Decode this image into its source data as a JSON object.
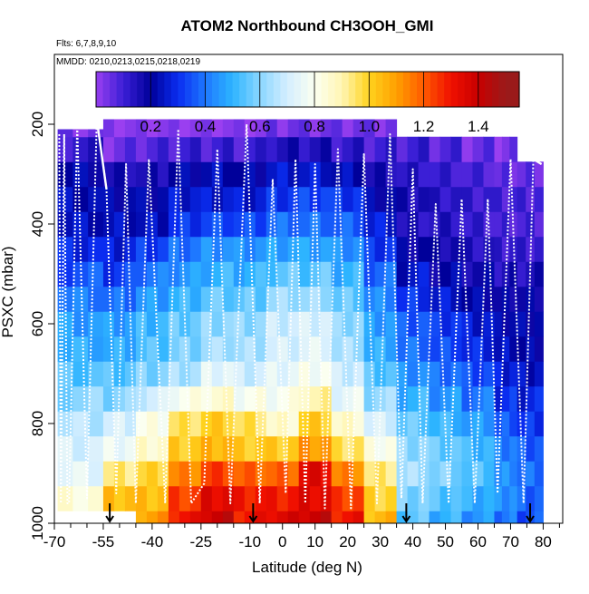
{
  "chart_data": {
    "type": "heatmap",
    "title": "ATOM2 Northbound CH3OOH_GMI",
    "subtitle_flights": "Flts: 6,7,8,9,10",
    "subtitle_dates": "MMDD: 0210,0213,0215,0218,0219",
    "xlabel": "Latitude (deg N)",
    "ylabel": "PSXC (mbar)",
    "xlim": [
      -70,
      86
    ],
    "ylim": [
      1000,
      60
    ],
    "y_reversed": true,
    "x_ticks": [
      -70,
      -55,
      -40,
      -25,
      -10,
      0,
      10,
      20,
      30,
      40,
      50,
      60,
      70,
      80
    ],
    "x_minor_ticks": [
      -65,
      -60,
      -50,
      -45,
      -35,
      -30,
      -20,
      -15,
      -5,
      5,
      15,
      25,
      35,
      45,
      55,
      65,
      75,
      85
    ],
    "y_ticks": [
      200,
      400,
      600,
      800,
      1000
    ],
    "colorbar": {
      "ticks": [
        0.2,
        0.4,
        0.6,
        0.8,
        1.0,
        1.2,
        1.4
      ],
      "tick_labels": [
        "0.2",
        "0.4",
        "0.6",
        "0.8",
        "1.0",
        "1.2",
        "1.4"
      ],
      "range": [
        0,
        1.55
      ],
      "stops": [
        {
          "v": 0.0,
          "color": "#9a3ff0"
        },
        {
          "v": 0.1,
          "color": "#3b1fd6"
        },
        {
          "v": 0.2,
          "color": "#00009a"
        },
        {
          "v": 0.3,
          "color": "#0a2cf0"
        },
        {
          "v": 0.4,
          "color": "#1e78ff"
        },
        {
          "v": 0.5,
          "color": "#2db4ff"
        },
        {
          "v": 0.6,
          "color": "#8ad6ff"
        },
        {
          "v": 0.7,
          "color": "#d4eeff"
        },
        {
          "v": 0.8,
          "color": "#fbfff0"
        },
        {
          "v": 0.9,
          "color": "#fff6b4"
        },
        {
          "v": 1.0,
          "color": "#ffd21e"
        },
        {
          "v": 1.1,
          "color": "#ffa000"
        },
        {
          "v": 1.2,
          "color": "#ff5a00"
        },
        {
          "v": 1.3,
          "color": "#f01000"
        },
        {
          "v": 1.4,
          "color": "#c80000"
        },
        {
          "v": 1.5,
          "color": "#9a1a1a"
        }
      ]
    },
    "pressure_levels": [
      1000,
      950,
      900,
      850,
      800,
      750,
      700,
      650,
      600,
      550,
      500,
      450,
      400,
      350,
      300,
      250,
      200
    ],
    "segments": [
      {
        "lat": [
          -69,
          -55
        ],
        "ptop": 210,
        "values": [
          null,
          0.85,
          0.75,
          0.7,
          0.65,
          0.6,
          0.55,
          0.5,
          0.45,
          0.4,
          0.35,
          0.3,
          0.25,
          0.22,
          0.2,
          0.12,
          0.05
        ]
      },
      {
        "lat": [
          -55,
          -45
        ],
        "ptop": 190,
        "values": [
          null,
          1.05,
          0.95,
          0.75,
          0.7,
          0.6,
          0.55,
          0.5,
          0.45,
          0.38,
          0.32,
          0.28,
          0.25,
          0.2,
          0.15,
          0.05,
          0.02
        ]
      },
      {
        "lat": [
          -45,
          -35
        ],
        "ptop": 190,
        "values": [
          1.1,
          1.05,
          1.0,
          0.85,
          0.8,
          0.7,
          0.6,
          0.55,
          0.5,
          0.45,
          0.4,
          0.33,
          0.25,
          0.2,
          0.15,
          0.08,
          0.02
        ]
      },
      {
        "lat": [
          -35,
          -25
        ],
        "ptop": 190,
        "values": [
          1.3,
          1.25,
          1.15,
          1.0,
          0.95,
          0.8,
          0.65,
          0.6,
          0.55,
          0.5,
          0.45,
          0.4,
          0.32,
          0.25,
          0.2,
          0.1,
          0.02
        ]
      },
      {
        "lat": [
          -25,
          -15
        ],
        "ptop": 190,
        "values": [
          1.4,
          1.35,
          1.25,
          1.05,
          1.0,
          0.85,
          0.75,
          0.65,
          0.6,
          0.55,
          0.5,
          0.45,
          0.35,
          0.25,
          0.22,
          0.1,
          0.02
        ]
      },
      {
        "lat": [
          -15,
          -5
        ],
        "ptop": 190,
        "values": [
          1.3,
          1.3,
          1.2,
          1.0,
          0.95,
          0.8,
          0.7,
          0.65,
          0.6,
          0.55,
          0.5,
          0.45,
          0.35,
          0.25,
          0.2,
          0.1,
          0.02
        ]
      },
      {
        "lat": [
          -5,
          5
        ],
        "ptop": 190,
        "values": [
          1.35,
          1.3,
          1.2,
          1.0,
          0.85,
          0.8,
          0.75,
          0.72,
          0.68,
          0.62,
          0.55,
          0.48,
          0.4,
          0.3,
          0.25,
          0.15,
          0.05
        ]
      },
      {
        "lat": [
          5,
          15
        ],
        "ptop": 190,
        "values": [
          1.4,
          1.35,
          1.35,
          1.1,
          1.0,
          0.9,
          0.8,
          0.75,
          0.7,
          0.62,
          0.55,
          0.48,
          0.4,
          0.32,
          0.25,
          0.15,
          0.05
        ]
      },
      {
        "lat": [
          15,
          25
        ],
        "ptop": 190,
        "values": [
          1.3,
          1.25,
          1.15,
          0.95,
          0.85,
          0.75,
          0.7,
          0.65,
          0.6,
          0.55,
          0.5,
          0.45,
          0.38,
          0.3,
          0.22,
          0.12,
          0.05
        ]
      },
      {
        "lat": [
          25,
          35
        ],
        "ptop": 190,
        "values": [
          1.05,
          1.0,
          0.95,
          0.8,
          0.7,
          0.62,
          0.55,
          0.5,
          0.45,
          0.42,
          0.38,
          0.32,
          0.28,
          0.2,
          0.15,
          0.1,
          0.05
        ]
      },
      {
        "lat": [
          35,
          45
        ],
        "ptop": 230,
        "values": [
          0.55,
          0.6,
          0.65,
          0.6,
          0.55,
          0.5,
          0.45,
          0.4,
          0.35,
          0.3,
          0.25,
          0.2,
          0.15,
          0.15,
          0.12,
          0.1,
          null
        ]
      },
      {
        "lat": [
          45,
          55
        ],
        "ptop": 230,
        "values": [
          0.5,
          0.55,
          0.6,
          0.55,
          0.5,
          0.45,
          0.4,
          0.35,
          0.3,
          0.25,
          0.2,
          0.18,
          0.15,
          0.12,
          0.1,
          0.08,
          null
        ]
      },
      {
        "lat": [
          55,
          65
        ],
        "ptop": 230,
        "values": [
          0.45,
          0.5,
          0.55,
          0.5,
          0.45,
          0.4,
          0.35,
          0.3,
          0.25,
          0.2,
          0.18,
          0.15,
          0.12,
          0.1,
          0.08,
          0.05,
          null
        ]
      },
      {
        "lat": [
          65,
          72
        ],
        "ptop": 230,
        "values": [
          0.4,
          0.45,
          0.45,
          0.4,
          0.35,
          0.3,
          0.28,
          0.25,
          0.2,
          0.18,
          0.15,
          0.12,
          0.1,
          0.08,
          0.05,
          0.03,
          null
        ]
      },
      {
        "lat": [
          72,
          80
        ],
        "ptop": 265,
        "values": [
          0.35,
          0.38,
          0.4,
          0.35,
          0.3,
          0.28,
          0.25,
          0.22,
          0.2,
          0.18,
          0.15,
          0.12,
          0.1,
          0.08,
          0.05,
          null,
          null
        ]
      }
    ],
    "flight_track_lat": [
      -68.5,
      -68,
      -67,
      -66,
      -65.5,
      -63,
      -60,
      -57,
      -54,
      -51,
      -48,
      -45,
      -41,
      -36,
      -32,
      -28,
      -24,
      -20,
      -16,
      -11,
      -7,
      -3,
      1,
      4,
      7,
      10,
      13,
      17,
      21,
      25,
      29,
      33,
      36.5,
      40,
      43,
      47,
      51,
      55,
      59,
      63,
      66,
      70,
      74,
      77,
      79.5
    ],
    "flight_track_p": [
      220,
      960,
      220,
      960,
      960,
      200,
      950,
      190,
      330,
      940,
      280,
      960,
      270,
      960,
      210,
      960,
      920,
      250,
      960,
      200,
      960,
      310,
      940,
      270,
      960,
      280,
      970,
      250,
      970,
      260,
      960,
      220,
      950,
      290,
      960,
      360,
      960,
      350,
      960,
      350,
      940,
      270,
      960,
      270,
      280
    ],
    "sonde_markers_lat": [
      -53,
      -9,
      38,
      76
    ]
  }
}
